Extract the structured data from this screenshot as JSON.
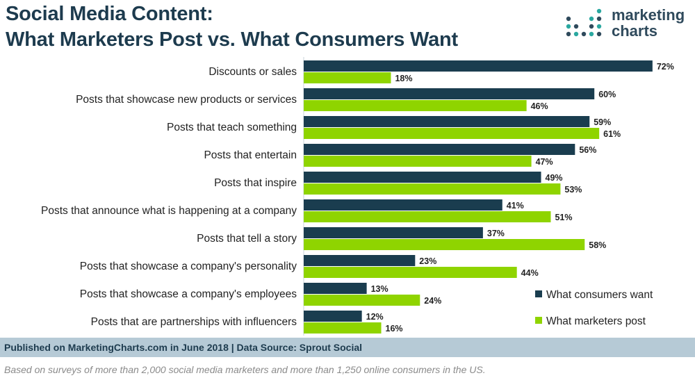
{
  "title": {
    "line1": "Social Media Content:",
    "line2": "What Marketers Post vs. What Consumers Want"
  },
  "logo": {
    "line1": "marketing",
    "line2": "charts"
  },
  "colors": {
    "consumers": "#1a3d4f",
    "marketers": "#8fd400",
    "title": "#1d3b4e",
    "footer_bg": "#b6cad6",
    "logo_teal": "#2aa8a0",
    "logo_navy": "#2f4a5c"
  },
  "chart_data": {
    "type": "bar",
    "orientation": "horizontal",
    "categories": [
      "Discounts or sales",
      "Posts that showcase new products or services",
      "Posts that teach something",
      "Posts that entertain",
      "Posts that inspire",
      "Posts that announce what is happening at a company",
      "Posts that tell a story",
      "Posts that showcase a company's personality",
      "Posts that showcase a company's employees",
      "Posts that are partnerships with influencers"
    ],
    "series": [
      {
        "name": "What consumers want",
        "values": [
          72,
          60,
          59,
          56,
          49,
          41,
          37,
          23,
          13,
          12
        ]
      },
      {
        "name": "What marketers post",
        "values": [
          18,
          46,
          61,
          47,
          53,
          51,
          58,
          44,
          24,
          16
        ]
      }
    ],
    "value_suffix": "%",
    "xlim": [
      0,
      100
    ],
    "legend_position": "bottom-right",
    "grid": false
  },
  "footer": {
    "source": "Published on MarketingCharts.com in June 2018 | Data Source: Sprout Social",
    "note": "Based on surveys of more than 2,000 social media marketers and more than 1,250 online consumers in the US."
  }
}
